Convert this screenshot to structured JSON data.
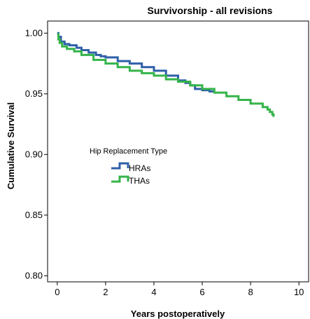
{
  "chart_data": {
    "type": "line",
    "title": "Survivorship - all revisions",
    "xlabel": "Years postoperatively",
    "ylabel": "Cumulative Survival",
    "xlim": [
      -0.4,
      10.4
    ],
    "ylim": [
      0.795,
      1.01
    ],
    "xticks": [
      0,
      2,
      4,
      6,
      8,
      10
    ],
    "xtick_labels": [
      "0",
      "2",
      "4",
      "6",
      "8",
      "10"
    ],
    "yticks": [
      0.8,
      0.85,
      0.9,
      0.95,
      1.0
    ],
    "ytick_labels": [
      "0.80",
      "0.85",
      "0.90",
      "0.95",
      "1.00"
    ],
    "grid": false,
    "legend": {
      "title": "Hip Replacement Type",
      "placement": "center-left"
    },
    "series": [
      {
        "name": "HRAs",
        "color": "#2f5fa8",
        "step": true,
        "x": [
          0,
          0.05,
          0.15,
          0.3,
          0.5,
          0.8,
          1.0,
          1.3,
          1.6,
          1.8,
          2.0,
          2.5,
          3.0,
          3.5,
          4.0,
          4.5,
          5.0,
          5.3,
          5.5,
          5.7,
          6.0,
          6.3,
          6.5
        ],
        "y": [
          1.0,
          0.997,
          0.993,
          0.991,
          0.99,
          0.988,
          0.986,
          0.984,
          0.982,
          0.981,
          0.98,
          0.977,
          0.975,
          0.972,
          0.969,
          0.965,
          0.961,
          0.959,
          0.957,
          0.954,
          0.953,
          0.952,
          0.952
        ]
      },
      {
        "name": "THAs",
        "color": "#35b44a",
        "step": true,
        "x": [
          0,
          0.05,
          0.1,
          0.2,
          0.4,
          0.7,
          1.0,
          1.5,
          2.0,
          2.5,
          3.0,
          3.5,
          4.0,
          4.5,
          5.0,
          5.5,
          6.0,
          6.5,
          7.0,
          7.5,
          8.0,
          8.5,
          8.7,
          8.8,
          8.9,
          8.95
        ],
        "y": [
          0.999,
          0.995,
          0.992,
          0.989,
          0.987,
          0.985,
          0.982,
          0.978,
          0.975,
          0.972,
          0.969,
          0.967,
          0.965,
          0.962,
          0.96,
          0.957,
          0.954,
          0.951,
          0.948,
          0.945,
          0.942,
          0.939,
          0.937,
          0.935,
          0.933,
          0.931
        ]
      }
    ]
  }
}
